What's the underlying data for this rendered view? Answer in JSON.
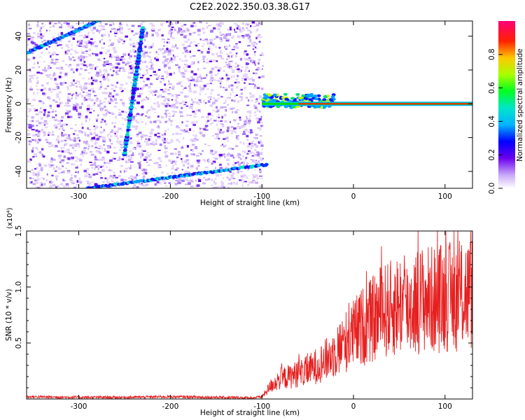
{
  "figure": {
    "title": "C2E2.2022.350.03.38.G17"
  },
  "chart_data": [
    {
      "type": "heatmap",
      "xlabel": "Height of straight line (km)",
      "ylabel": "Frequency (Hz)",
      "xlim": [
        -357,
        130
      ],
      "ylim": [
        -50,
        49
      ],
      "x_ticks": [
        -300,
        -200,
        -100,
        0,
        100
      ],
      "y_ticks": [
        -40,
        -20,
        0,
        20,
        40
      ],
      "colorbar": {
        "label": "Normalized spectral amplitude",
        "range": [
          0,
          1
        ],
        "ticks": [
          0.0,
          0.2,
          0.4,
          0.6,
          0.8
        ]
      },
      "features": {
        "noise_region_x": [
          -357,
          -100
        ],
        "carrier_line_start_x": -100,
        "carrier_line_end_x": 130,
        "carrier_freq_hz": 0
      }
    },
    {
      "type": "line",
      "xlabel": "Height of straight line (km)",
      "ylabel": "SNR (10 * v/v)",
      "y_multiplier": "(x10⁴)",
      "xlim": [
        -357,
        130
      ],
      "ylim": [
        0,
        1.5
      ],
      "x_ticks": [
        -300,
        -200,
        -100,
        0,
        100
      ],
      "y_ticks": [
        0.5,
        1.0,
        1.5
      ],
      "series": [
        {
          "color": "#e62020",
          "x": [
            -357,
            -300,
            -250,
            -200,
            -150,
            -110,
            -100,
            -90,
            -80,
            -70,
            -60,
            -50,
            -40,
            -30,
            -20,
            -10,
            0,
            10,
            20,
            30,
            40,
            50,
            60,
            70,
            80,
            90,
            100,
            110,
            120,
            130
          ],
          "y": [
            0.02,
            0.015,
            0.015,
            0.02,
            0.015,
            0.01,
            0.02,
            0.12,
            0.18,
            0.2,
            0.23,
            0.25,
            0.3,
            0.35,
            0.42,
            0.5,
            0.58,
            0.65,
            0.7,
            0.78,
            0.8,
            0.85,
            0.82,
            0.88,
            0.9,
            0.88,
            0.92,
            0.9,
            0.95,
            0.95
          ]
        }
      ]
    }
  ]
}
